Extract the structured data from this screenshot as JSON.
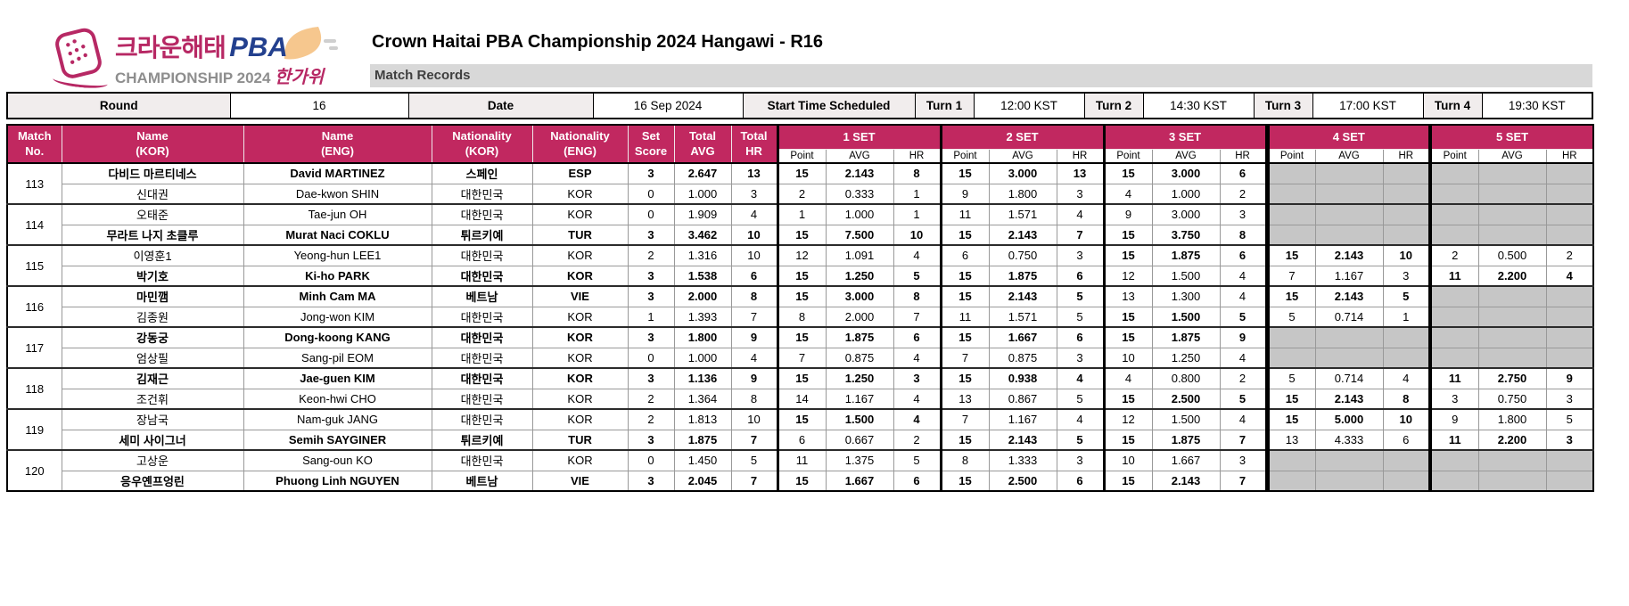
{
  "colors": {
    "accent_magenta": "#C12860",
    "logo_magenta": "#B72864",
    "logo_navy": "#23408E",
    "logo_peach": "#F6C78E",
    "bar_gray": "#D8D8D8",
    "na_gray": "#C6C6C6"
  },
  "header": {
    "logo_kor": "크라운해태",
    "logo_pba": "PBA",
    "logo_line2": "CHAMPIONSHIP 2024",
    "logo_line2_kor": "한가위",
    "title": "Crown Haitai PBA Championship 2024 Hangawi - R16",
    "subtitle": "Match Records"
  },
  "info_bar": {
    "round_label": "Round",
    "round_value": "16",
    "date_label": "Date",
    "date_value": "16 Sep 2024",
    "start_label": "Start Time Scheduled",
    "turns": [
      {
        "label": "Turn 1",
        "time": "12:00 KST"
      },
      {
        "label": "Turn 2",
        "time": "14:30 KST"
      },
      {
        "label": "Turn 3",
        "time": "17:00 KST"
      },
      {
        "label": "Turn 4",
        "time": "19:30 KST"
      }
    ]
  },
  "table": {
    "columns": {
      "match_no": "Match\nNo.",
      "name_kor": "Name\n(KOR)",
      "name_eng": "Name\n(ENG)",
      "nat_kor": "Nationality\n(KOR)",
      "nat_eng": "Nationality\n(ENG)",
      "set_score": "Set\nScore",
      "total_avg": "Total\nAVG",
      "total_hr": "Total\nHR"
    },
    "set_headers": [
      "1 SET",
      "2 SET",
      "3 SET",
      "4 SET",
      "5 SET"
    ],
    "sub_headers": [
      "Point",
      "AVG",
      "HR"
    ],
    "matches": [
      {
        "no": "113",
        "players": [
          {
            "kor": "다비드 마르티네스",
            "eng": "David MARTINEZ",
            "nat_kor": "스페인",
            "nat_eng": "ESP",
            "set_score": "3",
            "total_avg": "2.647",
            "total_hr": "13",
            "winner": true,
            "sets": [
              {
                "p": "15",
                "a": "2.143",
                "h": "8",
                "w": true
              },
              {
                "p": "15",
                "a": "3.000",
                "h": "13",
                "w": true
              },
              {
                "p": "15",
                "a": "3.000",
                "h": "6",
                "w": true
              },
              null,
              null
            ]
          },
          {
            "kor": "신대권",
            "eng": "Dae-kwon SHIN",
            "nat_kor": "대한민국",
            "nat_eng": "KOR",
            "set_score": "0",
            "total_avg": "1.000",
            "total_hr": "3",
            "winner": false,
            "sets": [
              {
                "p": "2",
                "a": "0.333",
                "h": "1",
                "w": false
              },
              {
                "p": "9",
                "a": "1.800",
                "h": "3",
                "w": false
              },
              {
                "p": "4",
                "a": "1.000",
                "h": "2",
                "w": false
              },
              null,
              null
            ]
          }
        ]
      },
      {
        "no": "114",
        "players": [
          {
            "kor": "오태준",
            "eng": "Tae-jun OH",
            "nat_kor": "대한민국",
            "nat_eng": "KOR",
            "set_score": "0",
            "total_avg": "1.909",
            "total_hr": "4",
            "winner": false,
            "sets": [
              {
                "p": "1",
                "a": "1.000",
                "h": "1",
                "w": false
              },
              {
                "p": "11",
                "a": "1.571",
                "h": "4",
                "w": false
              },
              {
                "p": "9",
                "a": "3.000",
                "h": "3",
                "w": false
              },
              null,
              null
            ]
          },
          {
            "kor": "무라트 나지 초클루",
            "eng": "Murat Naci COKLU",
            "nat_kor": "튀르키예",
            "nat_eng": "TUR",
            "set_score": "3",
            "total_avg": "3.462",
            "total_hr": "10",
            "winner": true,
            "sets": [
              {
                "p": "15",
                "a": "7.500",
                "h": "10",
                "w": true
              },
              {
                "p": "15",
                "a": "2.143",
                "h": "7",
                "w": true
              },
              {
                "p": "15",
                "a": "3.750",
                "h": "8",
                "w": true
              },
              null,
              null
            ]
          }
        ]
      },
      {
        "no": "115",
        "players": [
          {
            "kor": "이영훈1",
            "eng": "Yeong-hun LEE1",
            "nat_kor": "대한민국",
            "nat_eng": "KOR",
            "set_score": "2",
            "total_avg": "1.316",
            "total_hr": "10",
            "winner": false,
            "sets": [
              {
                "p": "12",
                "a": "1.091",
                "h": "4",
                "w": false
              },
              {
                "p": "6",
                "a": "0.750",
                "h": "3",
                "w": false
              },
              {
                "p": "15",
                "a": "1.875",
                "h": "6",
                "w": true
              },
              {
                "p": "15",
                "a": "2.143",
                "h": "10",
                "w": true
              },
              {
                "p": "2",
                "a": "0.500",
                "h": "2",
                "w": false
              }
            ]
          },
          {
            "kor": "박기호",
            "eng": "Ki-ho PARK",
            "nat_kor": "대한민국",
            "nat_eng": "KOR",
            "set_score": "3",
            "total_avg": "1.538",
            "total_hr": "6",
            "winner": true,
            "sets": [
              {
                "p": "15",
                "a": "1.250",
                "h": "5",
                "w": true
              },
              {
                "p": "15",
                "a": "1.875",
                "h": "6",
                "w": true
              },
              {
                "p": "12",
                "a": "1.500",
                "h": "4",
                "w": false
              },
              {
                "p": "7",
                "a": "1.167",
                "h": "3",
                "w": false
              },
              {
                "p": "11",
                "a": "2.200",
                "h": "4",
                "w": true
              }
            ]
          }
        ]
      },
      {
        "no": "116",
        "players": [
          {
            "kor": "마민깸",
            "eng": "Minh Cam MA",
            "nat_kor": "베트남",
            "nat_eng": "VIE",
            "set_score": "3",
            "total_avg": "2.000",
            "total_hr": "8",
            "winner": true,
            "sets": [
              {
                "p": "15",
                "a": "3.000",
                "h": "8",
                "w": true
              },
              {
                "p": "15",
                "a": "2.143",
                "h": "5",
                "w": true
              },
              {
                "p": "13",
                "a": "1.300",
                "h": "4",
                "w": false
              },
              {
                "p": "15",
                "a": "2.143",
                "h": "5",
                "w": true
              },
              null
            ]
          },
          {
            "kor": "김종원",
            "eng": "Jong-won KIM",
            "nat_kor": "대한민국",
            "nat_eng": "KOR",
            "set_score": "1",
            "total_avg": "1.393",
            "total_hr": "7",
            "winner": false,
            "sets": [
              {
                "p": "8",
                "a": "2.000",
                "h": "7",
                "w": false
              },
              {
                "p": "11",
                "a": "1.571",
                "h": "5",
                "w": false
              },
              {
                "p": "15",
                "a": "1.500",
                "h": "5",
                "w": true
              },
              {
                "p": "5",
                "a": "0.714",
                "h": "1",
                "w": false
              },
              null
            ]
          }
        ]
      },
      {
        "no": "117",
        "players": [
          {
            "kor": "강동궁",
            "eng": "Dong-koong KANG",
            "nat_kor": "대한민국",
            "nat_eng": "KOR",
            "set_score": "3",
            "total_avg": "1.800",
            "total_hr": "9",
            "winner": true,
            "sets": [
              {
                "p": "15",
                "a": "1.875",
                "h": "6",
                "w": true
              },
              {
                "p": "15",
                "a": "1.667",
                "h": "6",
                "w": true
              },
              {
                "p": "15",
                "a": "1.875",
                "h": "9",
                "w": true
              },
              null,
              null
            ]
          },
          {
            "kor": "엄상필",
            "eng": "Sang-pil EOM",
            "nat_kor": "대한민국",
            "nat_eng": "KOR",
            "set_score": "0",
            "total_avg": "1.000",
            "total_hr": "4",
            "winner": false,
            "sets": [
              {
                "p": "7",
                "a": "0.875",
                "h": "4",
                "w": false
              },
              {
                "p": "7",
                "a": "0.875",
                "h": "3",
                "w": false
              },
              {
                "p": "10",
                "a": "1.250",
                "h": "4",
                "w": false
              },
              null,
              null
            ]
          }
        ]
      },
      {
        "no": "118",
        "players": [
          {
            "kor": "김재근",
            "eng": "Jae-guen KIM",
            "nat_kor": "대한민국",
            "nat_eng": "KOR",
            "set_score": "3",
            "total_avg": "1.136",
            "total_hr": "9",
            "winner": true,
            "sets": [
              {
                "p": "15",
                "a": "1.250",
                "h": "3",
                "w": true
              },
              {
                "p": "15",
                "a": "0.938",
                "h": "4",
                "w": true
              },
              {
                "p": "4",
                "a": "0.800",
                "h": "2",
                "w": false
              },
              {
                "p": "5",
                "a": "0.714",
                "h": "4",
                "w": false
              },
              {
                "p": "11",
                "a": "2.750",
                "h": "9",
                "w": true
              }
            ]
          },
          {
            "kor": "조건휘",
            "eng": "Keon-hwi CHO",
            "nat_kor": "대한민국",
            "nat_eng": "KOR",
            "set_score": "2",
            "total_avg": "1.364",
            "total_hr": "8",
            "winner": false,
            "sets": [
              {
                "p": "14",
                "a": "1.167",
                "h": "4",
                "w": false
              },
              {
                "p": "13",
                "a": "0.867",
                "h": "5",
                "w": false
              },
              {
                "p": "15",
                "a": "2.500",
                "h": "5",
                "w": true
              },
              {
                "p": "15",
                "a": "2.143",
                "h": "8",
                "w": true
              },
              {
                "p": "3",
                "a": "0.750",
                "h": "3",
                "w": false
              }
            ]
          }
        ]
      },
      {
        "no": "119",
        "players": [
          {
            "kor": "장남국",
            "eng": "Nam-guk JANG",
            "nat_kor": "대한민국",
            "nat_eng": "KOR",
            "set_score": "2",
            "total_avg": "1.813",
            "total_hr": "10",
            "winner": false,
            "sets": [
              {
                "p": "15",
                "a": "1.500",
                "h": "4",
                "w": true
              },
              {
                "p": "7",
                "a": "1.167",
                "h": "4",
                "w": false
              },
              {
                "p": "12",
                "a": "1.500",
                "h": "4",
                "w": false
              },
              {
                "p": "15",
                "a": "5.000",
                "h": "10",
                "w": true
              },
              {
                "p": "9",
                "a": "1.800",
                "h": "5",
                "w": false
              }
            ]
          },
          {
            "kor": "세미 사이그너",
            "eng": "Semih SAYGINER",
            "nat_kor": "튀르키예",
            "nat_eng": "TUR",
            "set_score": "3",
            "total_avg": "1.875",
            "total_hr": "7",
            "winner": true,
            "sets": [
              {
                "p": "6",
                "a": "0.667",
                "h": "2",
                "w": false
              },
              {
                "p": "15",
                "a": "2.143",
                "h": "5",
                "w": true
              },
              {
                "p": "15",
                "a": "1.875",
                "h": "7",
                "w": true
              },
              {
                "p": "13",
                "a": "4.333",
                "h": "6",
                "w": false
              },
              {
                "p": "11",
                "a": "2.200",
                "h": "3",
                "w": true
              }
            ]
          }
        ]
      },
      {
        "no": "120",
        "players": [
          {
            "kor": "고상운",
            "eng": "Sang-oun KO",
            "nat_kor": "대한민국",
            "nat_eng": "KOR",
            "set_score": "0",
            "total_avg": "1.450",
            "total_hr": "5",
            "winner": false,
            "sets": [
              {
                "p": "11",
                "a": "1.375",
                "h": "5",
                "w": false
              },
              {
                "p": "8",
                "a": "1.333",
                "h": "3",
                "w": false
              },
              {
                "p": "10",
                "a": "1.667",
                "h": "3",
                "w": false
              },
              null,
              null
            ]
          },
          {
            "kor": "응우옌프엉린",
            "eng": "Phuong Linh NGUYEN",
            "nat_kor": "베트남",
            "nat_eng": "VIE",
            "set_score": "3",
            "total_avg": "2.045",
            "total_hr": "7",
            "winner": true,
            "sets": [
              {
                "p": "15",
                "a": "1.667",
                "h": "6",
                "w": true
              },
              {
                "p": "15",
                "a": "2.500",
                "h": "6",
                "w": true
              },
              {
                "p": "15",
                "a": "2.143",
                "h": "7",
                "w": true
              },
              null,
              null
            ]
          }
        ]
      }
    ]
  }
}
